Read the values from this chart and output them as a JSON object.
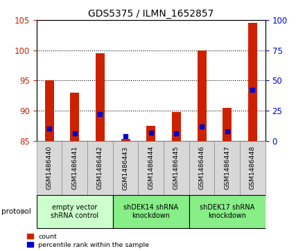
{
  "title": "GDS5375 / ILMN_1652857",
  "samples": [
    "GSM1486440",
    "GSM1486441",
    "GSM1486442",
    "GSM1486443",
    "GSM1486444",
    "GSM1486445",
    "GSM1486446",
    "GSM1486447",
    "GSM1486448"
  ],
  "count_values": [
    95,
    93,
    99.5,
    85.3,
    87.5,
    89.8,
    100,
    90.5,
    104.5
  ],
  "percentile_values": [
    10,
    6,
    22,
    4,
    7,
    6,
    12,
    8,
    42
  ],
  "ylim_left": [
    85,
    105
  ],
  "ylim_right": [
    0,
    100
  ],
  "yticks_left": [
    85,
    90,
    95,
    100,
    105
  ],
  "yticks_right": [
    0,
    25,
    50,
    75,
    100
  ],
  "bar_bottom": 85,
  "bar_color": "#cc2200",
  "dot_color": "#0000cc",
  "groups": [
    {
      "label": "empty vector\nshRNA control",
      "start": 0,
      "end": 2,
      "color": "#ccffcc"
    },
    {
      "label": "shDEK14 shRNA\nknockdown",
      "start": 3,
      "end": 5,
      "color": "#88ee88"
    },
    {
      "label": "shDEK17 shRNA\nknockdown",
      "start": 6,
      "end": 8,
      "color": "#88ee88"
    }
  ],
  "legend_items": [
    {
      "label": "count",
      "color": "#cc2200"
    },
    {
      "label": "percentile rank within the sample",
      "color": "#0000cc"
    }
  ],
  "protocol_label": "protocol",
  "background_color": "#ffffff",
  "tick_label_color_left": "#cc2200",
  "tick_label_color_right": "#0000cc",
  "bar_width": 0.35,
  "dot_size": 22,
  "gray_box_color": "#d8d8d8",
  "gray_box_border": "#888888"
}
